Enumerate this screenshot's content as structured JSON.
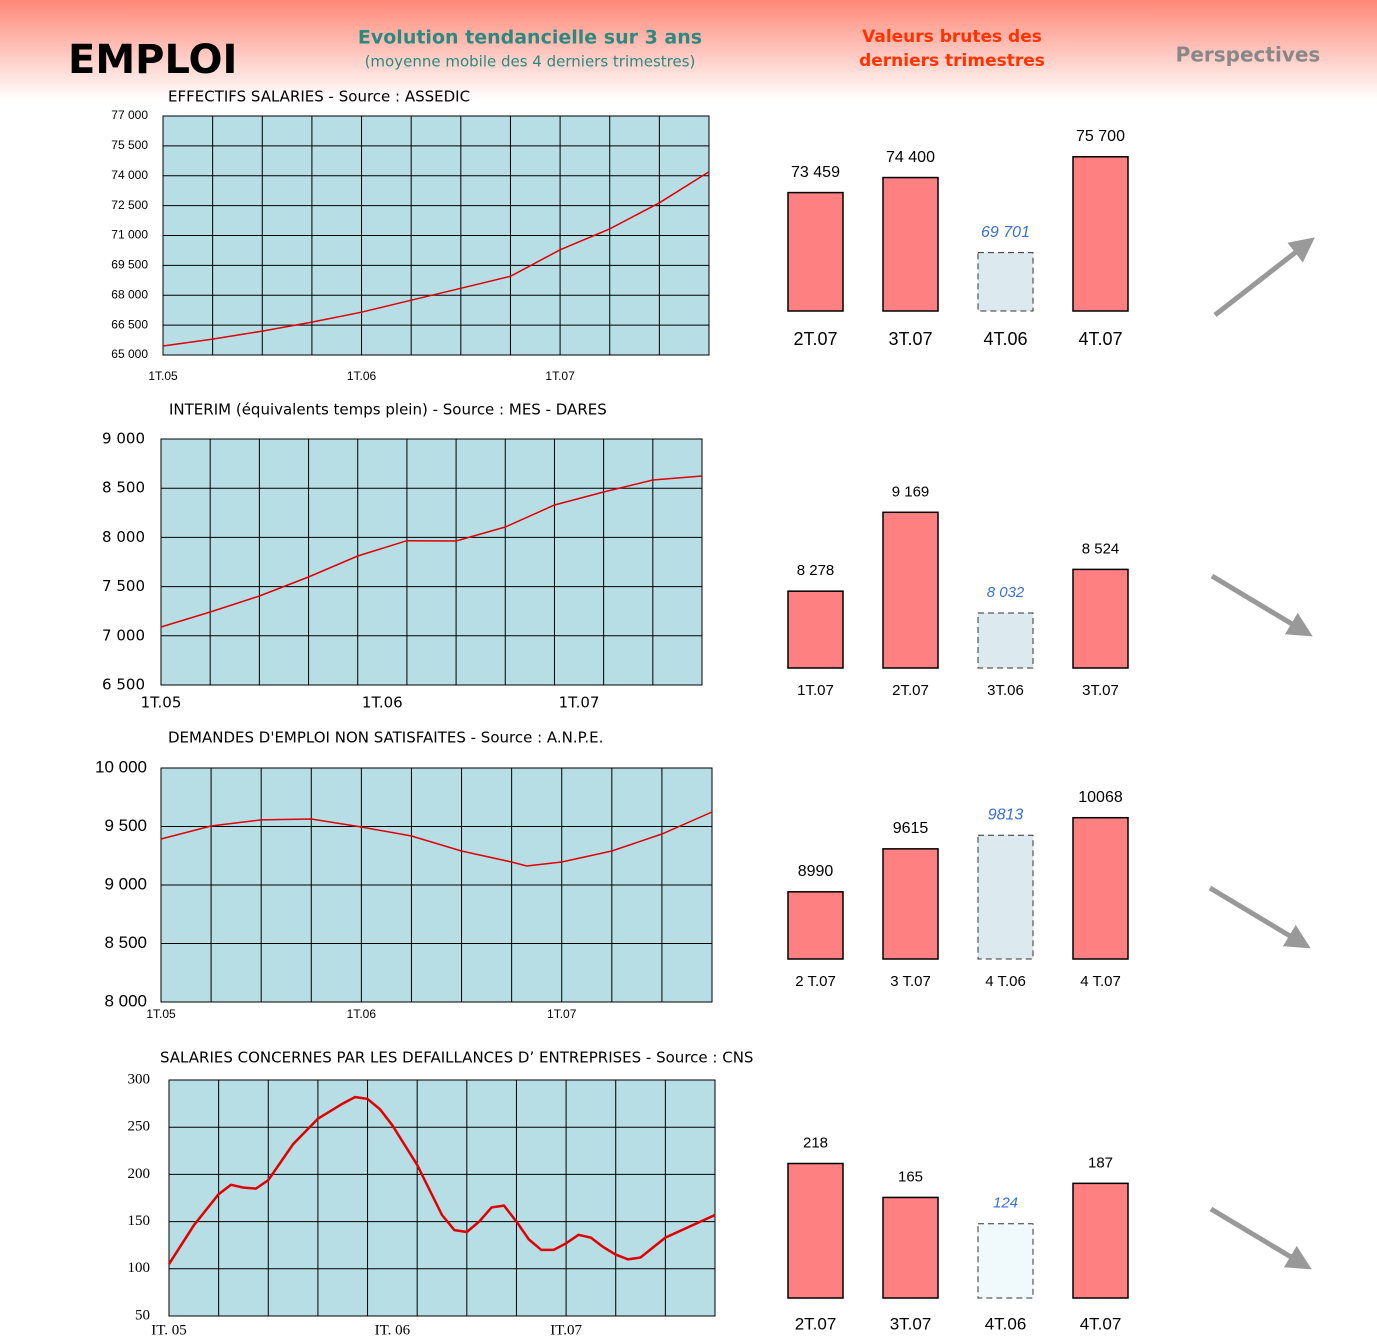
{
  "header": {
    "title": "EMPLOI",
    "trend_title": "Evolution tendancielle sur 3 ans",
    "trend_subtitle": "(moyenne mobile des 4 derniers trimestres)",
    "raw_title": [
      "Valeurs brutes des",
      "derniers trimestres"
    ],
    "perspectives": "Perspectives"
  },
  "chart_data": [
    {
      "type": "line",
      "title": "EFFECTIFS SALARIES - Source : ASSEDIC",
      "x": [
        0,
        1,
        2,
        3,
        4,
        5,
        6,
        7,
        8,
        9,
        10,
        11
      ],
      "values": [
        65450,
        65800,
        66200,
        66650,
        67150,
        67750,
        68350,
        68950,
        70280,
        71330,
        72640,
        74200
      ],
      "color": "#e00000",
      "xlim": [
        0,
        11
      ],
      "xticks": [
        {
          "value": 0,
          "label": "1T.05"
        },
        {
          "value": 4,
          "label": "1T.06"
        },
        {
          "value": 8,
          "label": "1T.07"
        }
      ],
      "xgrid": [
        0,
        1,
        2,
        3,
        4,
        5,
        6,
        7,
        8,
        9,
        10,
        11
      ],
      "ylim": [
        65000,
        77000
      ],
      "yticks": [
        {
          "value": 65000,
          "label": "65 000"
        },
        {
          "value": 66500,
          "label": "66 500"
        },
        {
          "value": 68000,
          "label": "68 000"
        },
        {
          "value": 69500,
          "label": "69 500"
        },
        {
          "value": 71000,
          "label": "71 000"
        },
        {
          "value": 72500,
          "label": "72 500"
        },
        {
          "value": 74000,
          "label": "74 000"
        },
        {
          "value": 75500,
          "label": "75 500"
        },
        {
          "value": 77000,
          "label": "77 000"
        }
      ],
      "grid": true
    },
    {
      "type": "bar",
      "categories": [
        "2T.07",
        "3T.07",
        "4T.06",
        "4T.07"
      ],
      "values": [
        73459,
        74400,
        69701,
        75700
      ],
      "value_labels": [
        "73 459",
        "74 400",
        "69 701",
        "75 700"
      ],
      "colors": [
        "#ff8080",
        "#ff8080",
        "#dce9ef",
        "#ff8080"
      ],
      "border_styles": [
        "solid",
        "solid",
        "dashed",
        "solid"
      ],
      "ylim": [
        66050,
        77000
      ],
      "trend": "up"
    },
    {
      "type": "line",
      "title": "INTERIM (équivalents temps plein) - Source : MES - DARES",
      "x": [
        0,
        1,
        2,
        3,
        4,
        5,
        6,
        7,
        8,
        9,
        10,
        11
      ],
      "values": [
        7089,
        7242,
        7404,
        7598,
        7811,
        7966,
        7963,
        8106,
        8329,
        8461,
        8583,
        8624
      ],
      "color": "#e00000",
      "xlim": [
        0,
        11
      ],
      "xticks": [
        {
          "value": 0,
          "label": "1T.05"
        },
        {
          "value": 4.5,
          "label": "1T.06"
        },
        {
          "value": 8.5,
          "label": "1T.07"
        }
      ],
      "xgrid": [
        0,
        1,
        2,
        3,
        4,
        5,
        6,
        7,
        8,
        9,
        10,
        11
      ],
      "ylim": [
        6500,
        9000
      ],
      "yticks": [
        {
          "value": 6500,
          "label": "6 500"
        },
        {
          "value": 7000,
          "label": "7 000"
        },
        {
          "value": 7500,
          "label": "7 500"
        },
        {
          "value": 8000,
          "label": "8 000"
        },
        {
          "value": 8500,
          "label": "8 500"
        },
        {
          "value": 9000,
          "label": "9 000"
        }
      ],
      "grid": true
    },
    {
      "type": "bar",
      "categories": [
        "1T.07",
        "2T.07",
        "3T.06",
        "3T.07"
      ],
      "values": [
        8278,
        9169,
        8032,
        8524
      ],
      "value_labels": [
        "8 278",
        "9 169",
        "8 032",
        "8 524"
      ],
      "colors": [
        "#ff8080",
        "#ff8080",
        "#dce9ef",
        "#ff8080"
      ],
      "border_styles": [
        "solid",
        "solid",
        "dashed",
        "solid"
      ],
      "ylim": [
        7410,
        9500
      ],
      "trend": "down"
    },
    {
      "type": "line",
      "title": "DEMANDES D'EMPLOI NON SATISFAITES - Source : A.N.P.E.",
      "x": [
        0,
        1,
        2,
        3,
        4,
        5,
        6,
        7,
        7.3,
        8,
        9,
        10,
        11
      ],
      "values": [
        9393,
        9504,
        9556,
        9564,
        9496,
        9419,
        9291,
        9197,
        9162,
        9197,
        9291,
        9436,
        9624
      ],
      "color": "#e00000",
      "xlim": [
        0,
        11
      ],
      "xticks": [
        {
          "value": 0,
          "label": "1T.05"
        },
        {
          "value": 4,
          "label": "1T.06"
        },
        {
          "value": 8,
          "label": "1T.07"
        }
      ],
      "xgrid": [
        0,
        1,
        2,
        3,
        4,
        5,
        6,
        7,
        8,
        9,
        10,
        11
      ],
      "ylim": [
        8000,
        10000
      ],
      "yticks": [
        {
          "value": 8000,
          "label": "8 000"
        },
        {
          "value": 8500,
          "label": "8 500"
        },
        {
          "value": 9000,
          "label": "9 000"
        },
        {
          "value": 9500,
          "label": "9 500"
        },
        {
          "value": 10000,
          "label": "10 000"
        }
      ],
      "grid": true
    },
    {
      "type": "bar",
      "categories": [
        "2 T.07",
        "3 T.07",
        "4 T.06",
        "4 T.07"
      ],
      "values": [
        8990,
        9615,
        9813,
        10068
      ],
      "colors": [
        "#ff8080",
        "#ff8080",
        "#dce9ef",
        "#ff8080"
      ],
      "border_styles": [
        "solid",
        "solid",
        "dashed",
        "solid"
      ],
      "ylim": [
        8013,
        10500
      ],
      "trend": "down"
    },
    {
      "type": "line",
      "title": "SALARIES CONCERNES PAR  LES DEFAILLANCES D’ ENTREPRISES - Source : CNS",
      "x": [
        0,
        0.5,
        1,
        1.25,
        1.5,
        1.75,
        2,
        2.5,
        3,
        3.5,
        3.75,
        4,
        4.25,
        4.5,
        5,
        5.5,
        5.75,
        6,
        6.25,
        6.5,
        6.75,
        7,
        7.25,
        7.5,
        7.75,
        8,
        8.25,
        8.5,
        8.75,
        9,
        9.25,
        9.5,
        10,
        11
      ],
      "values": [
        105,
        146,
        179,
        189,
        186,
        185,
        194,
        232,
        259,
        275,
        282,
        280,
        269,
        252,
        210,
        157,
        141,
        139,
        150,
        165,
        167,
        150,
        131,
        120,
        120,
        127,
        136,
        133,
        123,
        115,
        110,
        112,
        133,
        157
      ],
      "color": "#e00000",
      "xlim": [
        0,
        11
      ],
      "xticks": [
        {
          "value": 0,
          "label": "IT. 05"
        },
        {
          "value": 4.5,
          "label": "IT. 06"
        },
        {
          "value": 8,
          "label": "IT.07"
        }
      ],
      "xgrid": [
        0,
        1,
        2,
        3,
        4,
        5,
        6,
        7,
        8,
        9,
        10,
        11
      ],
      "ylim": [
        50,
        300
      ],
      "yticks": [
        50,
        100,
        150,
        200,
        250,
        300
      ],
      "grid": true
    },
    {
      "type": "bar",
      "categories": [
        "2T.07",
        "3T.07",
        "4T.06",
        "4T.07"
      ],
      "values": [
        218,
        165,
        124,
        187
      ],
      "colors": [
        "#ff8080",
        "#ff8080",
        "#f0fafc",
        "#ff8080"
      ],
      "border_styles": [
        "solid",
        "solid",
        "dashed",
        "solid"
      ],
      "ylim": [
        8,
        250
      ],
      "trend": "down"
    }
  ]
}
